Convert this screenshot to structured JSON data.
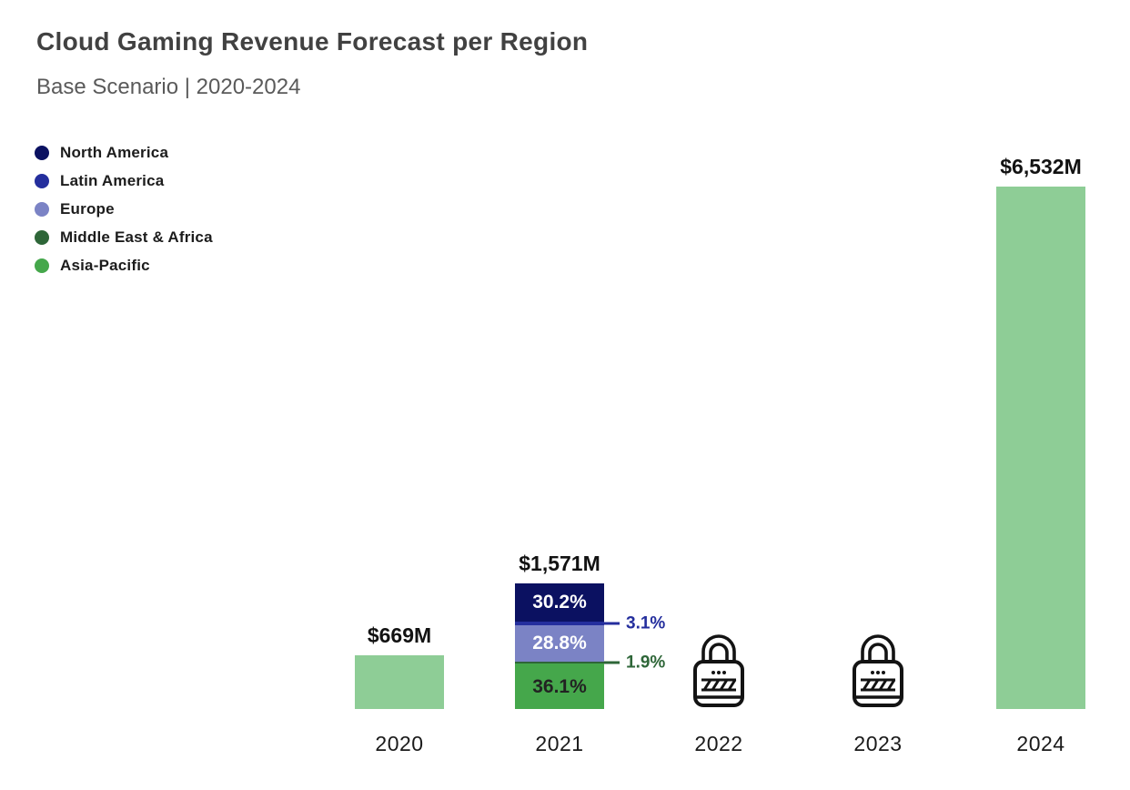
{
  "header": {
    "title": "Cloud Gaming Revenue Forecast per Region",
    "subtitle": "Base Scenario | 2020-2024"
  },
  "chart_data": {
    "type": "bar",
    "stacked": true,
    "title": "Cloud Gaming Revenue Forecast per Region",
    "subtitle": "Base Scenario | 2020-2024",
    "unit": "USD millions (M)",
    "categories": [
      "2020",
      "2021",
      "2022",
      "2023",
      "2024"
    ],
    "ylim": [
      0,
      6532
    ],
    "grid": false,
    "legend_position": "top-left",
    "aggregate_bar_color": "#8ecd96",
    "regions": [
      {
        "name": "North America",
        "color": "#0b1161"
      },
      {
        "name": "Latin America",
        "color": "#242e9d"
      },
      {
        "name": "Europe",
        "color": "#7b83c5"
      },
      {
        "name": "Middle East & Africa",
        "color": "#2e6638"
      },
      {
        "name": "Asia-Pacific",
        "color": "#45a74b"
      }
    ],
    "bars": [
      {
        "category": "2020",
        "total": 669,
        "total_label": "$669M",
        "style": "aggregate"
      },
      {
        "category": "2021",
        "total": 1571,
        "total_label": "$1,571M",
        "style": "stacked",
        "segments": [
          {
            "region": "North America",
            "pct": 30.2,
            "label": "30.2%"
          },
          {
            "region": "Latin America",
            "pct": 3.1,
            "label": "3.1%"
          },
          {
            "region": "Europe",
            "pct": 28.8,
            "label": "28.8%"
          },
          {
            "region": "Middle East & Africa",
            "pct": 1.9,
            "label": "1.9%"
          },
          {
            "region": "Asia-Pacific",
            "pct": 36.1,
            "label": "36.1%"
          }
        ]
      },
      {
        "category": "2022",
        "locked": true
      },
      {
        "category": "2023",
        "locked": true
      },
      {
        "category": "2024",
        "total": 6532,
        "total_label": "$6,532M",
        "style": "aggregate"
      }
    ]
  }
}
